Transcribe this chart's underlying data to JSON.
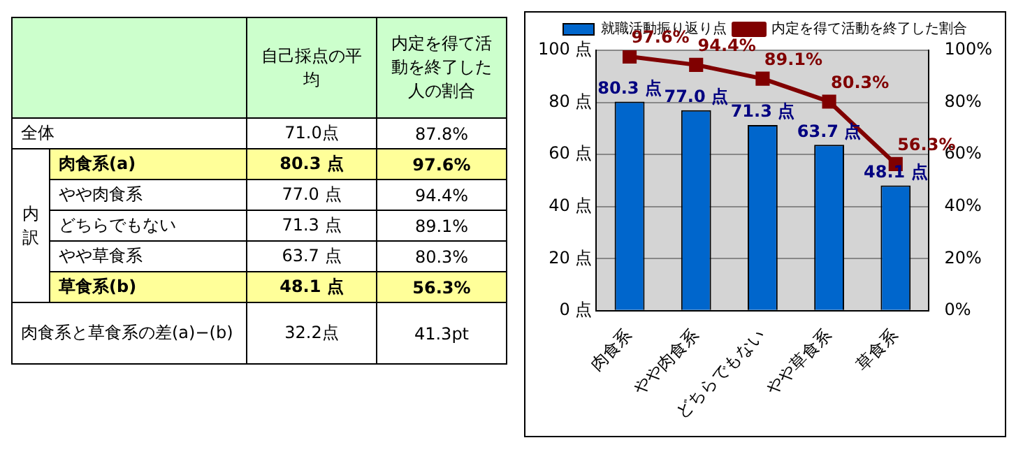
{
  "chart_data": [
    {
      "type": "other",
      "annotations": [
        "自己採点の平均",
        "内定を得て活動を終了した人の割合",
        "全体",
        "71.0点",
        "87.8%",
        "内訳",
        "肉食系(a)",
        "80.3 点",
        "97.6%",
        "やや肉食系",
        "77.0 点",
        "94.4%",
        "どちらでもない",
        "71.3 点",
        "89.1%",
        "やや草食系",
        "63.7 点",
        "80.3%",
        "草食系(b)",
        "48.1 点",
        "56.3%",
        "肉食系と草食系の差(a)−(b)",
        "32.2点",
        "41.3pt"
      ]
    },
    {
      "type": "bar",
      "categories": [
        "肉食系",
        "やや肉食系",
        "どちらでもない",
        "やや草食系",
        "草食系"
      ],
      "series": [
        {
          "name": "就職活動振り返り点",
          "type": "bar",
          "color": "#0066cc",
          "values": [
            80.3,
            77.0,
            71.3,
            63.7,
            48.1
          ],
          "value_labels": [
            "80.3 点",
            "77.0 点",
            "71.3 点",
            "63.7 点",
            "48.1 点"
          ]
        },
        {
          "name": "内定を得て活動を終了した割合",
          "type": "line",
          "axis": "y2",
          "color": "#800000",
          "marker": "square",
          "values": [
            97.6,
            94.4,
            89.1,
            80.3,
            56.3
          ],
          "value_labels": [
            "97.6%",
            "94.4%",
            "89.1%",
            "80.3%",
            "56.3%"
          ]
        }
      ],
      "ylim": [
        0,
        100
      ],
      "yticks": [
        {
          "value": 0,
          "label": "0 点"
        },
        {
          "value": 20,
          "label": "20 点"
        },
        {
          "value": 40,
          "label": "40 点"
        },
        {
          "value": 60,
          "label": "60 点"
        },
        {
          "value": 80,
          "label": "80 点"
        },
        {
          "value": 100,
          "label": "100 点"
        }
      ],
      "y2lim": [
        0,
        100
      ],
      "y2ticks": [
        {
          "value": 0,
          "label": "0%"
        },
        {
          "value": 20,
          "label": "20%"
        },
        {
          "value": 40,
          "label": "40%"
        },
        {
          "value": 60,
          "label": "60%"
        },
        {
          "value": 80,
          "label": "80%"
        },
        {
          "value": 100,
          "label": "100%"
        }
      ],
      "grid": "y",
      "legend": "top"
    }
  ]
}
